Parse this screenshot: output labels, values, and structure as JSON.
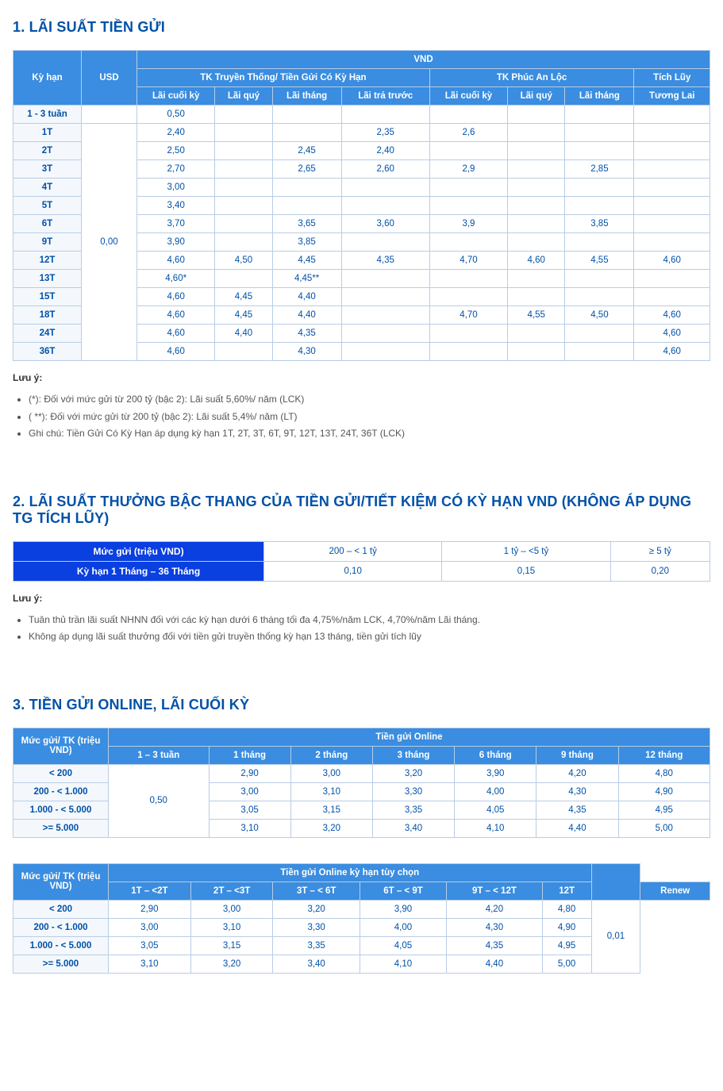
{
  "colors": {
    "heading": "#0051a8",
    "header_bg": "#3a8de0",
    "header2_bg": "#0a3fe0",
    "header_text": "#ffffff",
    "cell_text": "#0051a8",
    "border": "#b8cde6",
    "sub_bg": "#f4f8fc",
    "note_text": "#555"
  },
  "section1": {
    "title": "1. LÃI SUẤT TIỀN GỬI",
    "headers": {
      "ky_han": "Kỳ hạn",
      "usd": "USD",
      "vnd": "VND",
      "tk_truyen_thong": "TK Truyền Thống/ Tiền Gửi Có Kỳ Hạn",
      "tk_phuc_an_loc": "TK Phúc An Lộc",
      "tich_luy": "Tích Lũy",
      "lai_cuoi_ky": "Lãi cuối kỳ",
      "lai_quy": "Lãi quý",
      "lai_thang": "Lãi tháng",
      "lai_tra_truoc": "Lãi trả trước",
      "lai_cuoi_ky2": "Lãi cuối kỳ",
      "lai_quy2": "Lãi quý",
      "lai_thang2": "Lãi tháng",
      "tuong_lai": "Tương Lai"
    },
    "usd_val": "0,00",
    "rows": [
      {
        "k": "1 - 3 tuần",
        "v": [
          "0,50",
          "",
          "",
          "",
          "",
          "",
          "",
          ""
        ]
      },
      {
        "k": "1T",
        "v": [
          "2,40",
          "",
          "",
          "2,35",
          "2,6",
          "",
          "",
          ""
        ]
      },
      {
        "k": "2T",
        "v": [
          "2,50",
          "",
          "2,45",
          "2,40",
          "",
          "",
          "",
          ""
        ]
      },
      {
        "k": "3T",
        "v": [
          "2,70",
          "",
          "2,65",
          "2,60",
          "2,9",
          "",
          "2,85",
          ""
        ]
      },
      {
        "k": "4T",
        "v": [
          "3,00",
          "",
          "",
          "",
          "",
          "",
          "",
          ""
        ]
      },
      {
        "k": "5T",
        "v": [
          "3,40",
          "",
          "",
          "",
          "",
          "",
          "",
          ""
        ]
      },
      {
        "k": "6T",
        "v": [
          "3,70",
          "",
          "3,65",
          "3,60",
          "3,9",
          "",
          "3,85",
          ""
        ]
      },
      {
        "k": "9T",
        "v": [
          "3,90",
          "",
          "3,85",
          "",
          "",
          "",
          "",
          ""
        ]
      },
      {
        "k": "12T",
        "v": [
          "4,60",
          "4,50",
          "4,45",
          "4,35",
          "4,70",
          "4,60",
          "4,55",
          "4,60"
        ]
      },
      {
        "k": "13T",
        "v": [
          "4,60*",
          "",
          "4,45**",
          "",
          "",
          "",
          "",
          ""
        ]
      },
      {
        "k": "15T",
        "v": [
          "4,60",
          "4,45",
          "4,40",
          "",
          "",
          "",
          "",
          ""
        ]
      },
      {
        "k": "18T",
        "v": [
          "4,60",
          "4,45",
          "4,40",
          "",
          "4,70",
          "4,55",
          "4,50",
          "4,60"
        ]
      },
      {
        "k": "24T",
        "v": [
          "4,60",
          "4,40",
          "4,35",
          "",
          "",
          "",
          "",
          "4,60"
        ]
      },
      {
        "k": "36T",
        "v": [
          "4,60",
          "",
          "4,30",
          "",
          "",
          "",
          "",
          "4,60"
        ]
      }
    ],
    "note_label": "Lưu ý:",
    "notes": [
      "(*): Đối với mức gửi từ 200 tỷ (bậc 2): Lãi suất 5,60%/ năm (LCK)",
      "( **): Đối với mức gửi từ 200 tỷ (bậc 2): Lãi suất 5,4%/ năm (LT)",
      "Ghi chú: Tiền Gửi Có Kỳ Hạn áp dụng kỳ hạn 1T, 2T, 3T, 6T, 9T, 12T, 13T, 24T, 36T (LCK)"
    ]
  },
  "section2": {
    "title": "2. LÃI SUẤT THƯỞNG BẬC THANG CỦA TIỀN GỬI/TIẾT KIỆM CÓ KỲ HẠN VND (KHÔNG ÁP DỤNG TG TÍCH LŨY)",
    "row1_label": "Mức gửi (triệu VND)",
    "row1_vals": [
      "200 – < 1 tỷ",
      "1 tỷ – <5 tỷ",
      "≥ 5 tỷ"
    ],
    "row2_label": "Kỳ hạn 1 Tháng – 36 Tháng",
    "row2_vals": [
      "0,10",
      "0,15",
      "0,20"
    ],
    "note_label": "Lưu ý:",
    "notes": [
      "Tuân thủ trần lãi suất NHNN đối với các kỳ hạn dưới 6 tháng tối đa 4,75%/năm LCK, 4,70%/năm Lãi tháng.",
      "Không áp dụng lãi suất thưởng đối với tiền gửi truyền thống kỳ hạn 13 tháng, tiền gửi tích lũy"
    ]
  },
  "section3": {
    "title": "3. TIỀN GỬI ONLINE, LÃI CUỐI KỲ",
    "table1": {
      "rowhead": "Mức gửi/ TK (triệu VND)",
      "grouphead": "Tiền gửi Online",
      "cols": [
        "1 – 3 tuần",
        "1 tháng",
        "2 tháng",
        "3 tháng",
        "6 tháng",
        "9 tháng",
        "12 tháng"
      ],
      "first_col_val": "0,50",
      "rows": [
        {
          "k": "< 200",
          "v": [
            "2,90",
            "3,00",
            "3,20",
            "3,90",
            "4,20",
            "4,80"
          ]
        },
        {
          "k": "200 - < 1.000",
          "v": [
            "3,00",
            "3,10",
            "3,30",
            "4,00",
            "4,30",
            "4,90"
          ]
        },
        {
          "k": "1.000 - < 5.000",
          "v": [
            "3,05",
            "3,15",
            "3,35",
            "4,05",
            "4,35",
            "4,95"
          ]
        },
        {
          "k": ">= 5.000",
          "v": [
            "3,10",
            "3,20",
            "3,40",
            "4,10",
            "4,40",
            "5,00"
          ]
        }
      ]
    },
    "table2": {
      "rowhead": "Mức gửi/ TK (triệu VND)",
      "grouphead": "Tiền gửi Online kỳ hạn tùy chọn",
      "cols": [
        "1T – <2T",
        "2T – <3T",
        "3T – < 6T",
        "6T – < 9T",
        "9T – < 12T",
        "12T",
        "Renew"
      ],
      "renew_val": "0,01",
      "rows": [
        {
          "k": "< 200",
          "v": [
            "2,90",
            "3,00",
            "3,20",
            "3,90",
            "4,20",
            "4,80"
          ]
        },
        {
          "k": "200 - < 1.000",
          "v": [
            "3,00",
            "3,10",
            "3,30",
            "4,00",
            "4,30",
            "4,90"
          ]
        },
        {
          "k": "1.000 - < 5.000",
          "v": [
            "3,05",
            "3,15",
            "3,35",
            "4,05",
            "4,35",
            "4,95"
          ]
        },
        {
          "k": ">= 5.000",
          "v": [
            "3,10",
            "3,20",
            "3,40",
            "4,10",
            "4,40",
            "5,00"
          ]
        }
      ]
    }
  }
}
